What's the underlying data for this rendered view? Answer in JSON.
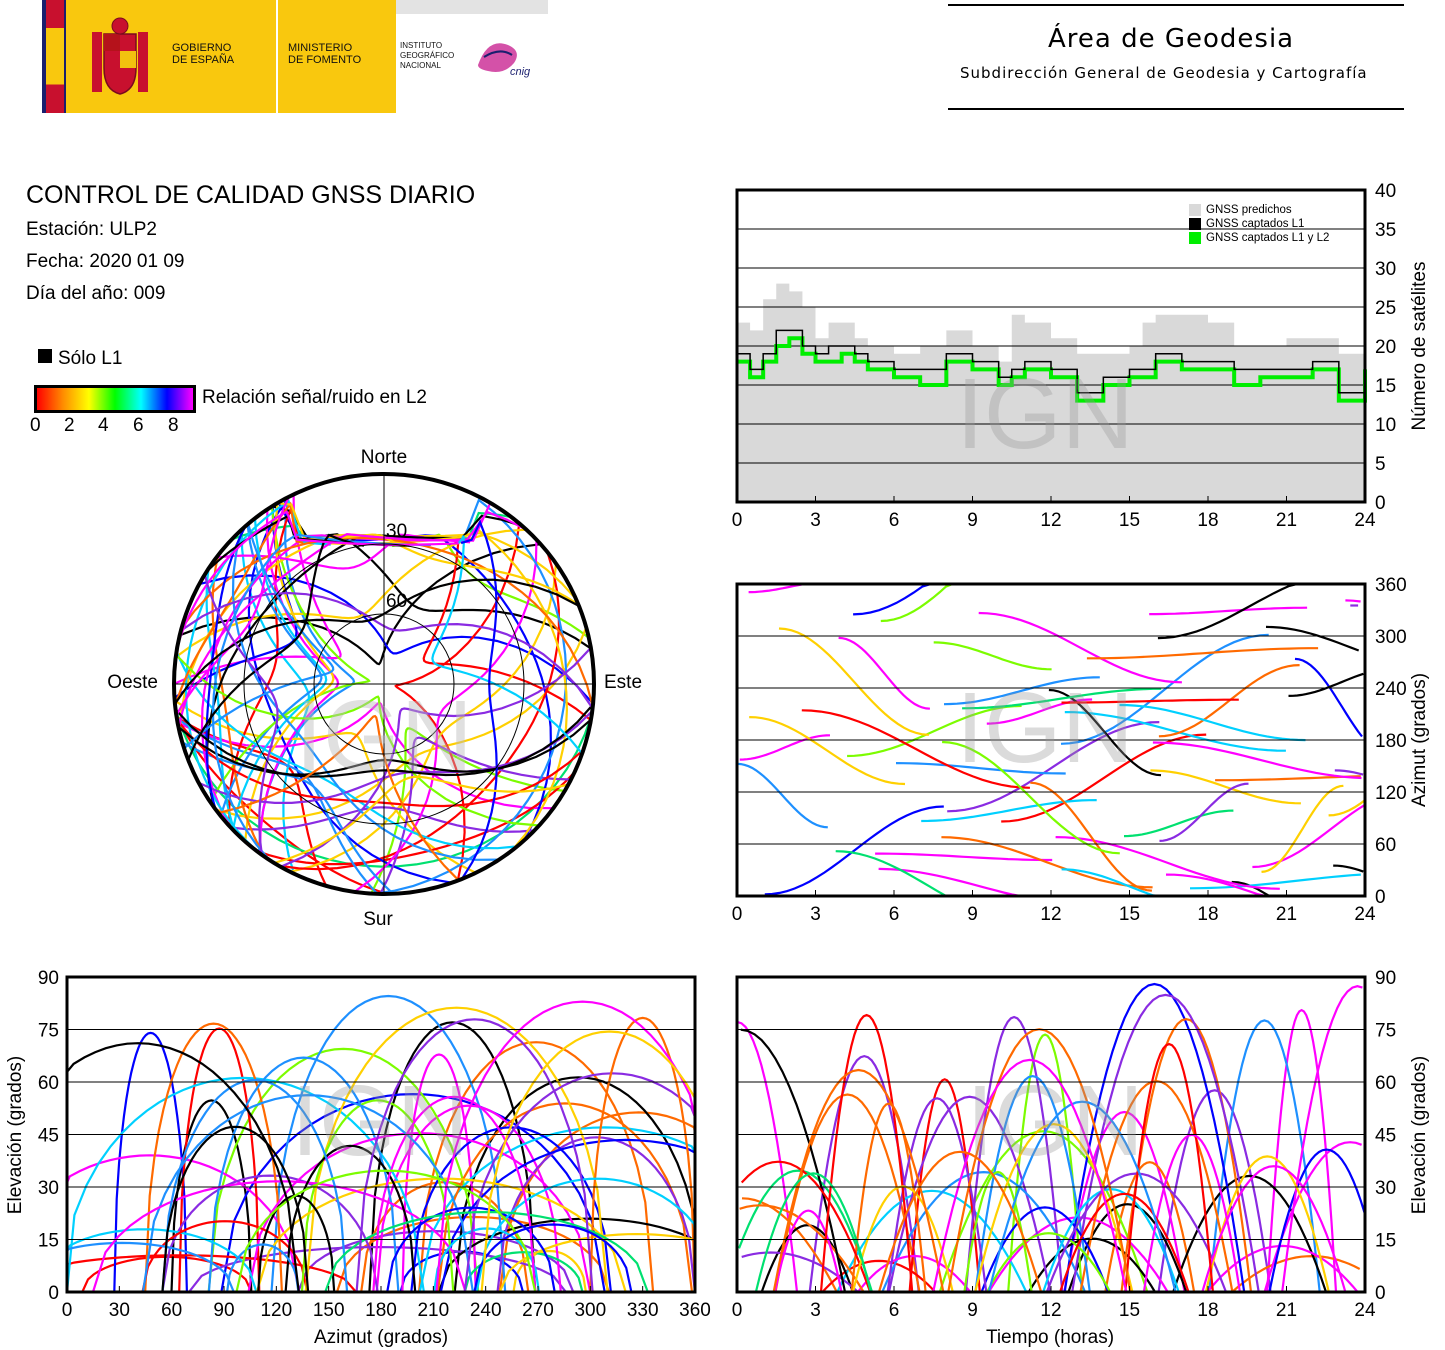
{
  "header": {
    "gobierno": [
      "GOBIERNO",
      "DE ESPAÑA"
    ],
    "ministerio": [
      "MINISTERIO",
      "DE FOMENTO"
    ],
    "instituto": [
      "INSTITUTO",
      "GEOGRÁFICO",
      "NACIONAL"
    ],
    "cnig": "cnig",
    "area_title": "Área de Geodesia",
    "area_subtitle": "Subdirección General de Geodesia y Cartografía",
    "colors": {
      "red": "#c8102e",
      "yellow": "#f9c80e",
      "navy": "#1a1f6e",
      "magenta": "#cc3399"
    }
  },
  "info": {
    "title": "CONTROL DE CALIDAD GNSS DIARIO",
    "station": "Estación: ULP2",
    "date": "Fecha: 2020 01 09",
    "doy": "Día del año: 009"
  },
  "legend": {
    "l1_only": "Sólo L1",
    "snr_label": "Relación señal/ruido en L2",
    "snr_ticks": [
      "0",
      "2",
      "4",
      "6",
      "8"
    ]
  },
  "watermark": "IGN",
  "chart_data": [
    {
      "id": "skyplot",
      "type": "scatter",
      "directions": {
        "north": "Norte",
        "south": "Sur",
        "west": "Oeste",
        "east": "Este"
      },
      "elevation_ring_labels": [
        "30",
        "60"
      ],
      "elevation_rings": [
        0,
        30,
        60
      ],
      "note_values": "polar sky tracks of GNSS satellites colored by L2 SNR"
    },
    {
      "id": "satellites",
      "type": "area",
      "xlabel": "",
      "ylabel": "Número de satélites",
      "xlim": [
        0,
        24
      ],
      "ylim": [
        0,
        40
      ],
      "x_ticks": [
        "0",
        "3",
        "6",
        "9",
        "12",
        "15",
        "18",
        "21",
        "24"
      ],
      "y_ticks": [
        "0",
        "5",
        "10",
        "15",
        "20",
        "25",
        "30",
        "35",
        "40"
      ],
      "legend_position": "top-right",
      "series": [
        {
          "name": "GNSS predichos",
          "color": "#d9d9d9",
          "x": [
            0,
            0.5,
            1,
            1.5,
            2,
            2.5,
            3,
            3.5,
            4,
            4.5,
            5,
            6,
            7,
            8,
            9,
            10,
            10.5,
            11,
            12,
            13,
            14,
            15,
            15.5,
            16,
            17,
            18,
            19,
            20,
            21,
            22,
            23,
            24
          ],
          "values": [
            23,
            22,
            26,
            28,
            27,
            25,
            21,
            23,
            23,
            21,
            20,
            19,
            20,
            22,
            20,
            18,
            24,
            23,
            21,
            19,
            19,
            20,
            23,
            24,
            24,
            23,
            20,
            20,
            21,
            21,
            19,
            20
          ]
        },
        {
          "name": "GNSS captados L1",
          "color": "#000000",
          "x": [
            0,
            0.5,
            1,
            1.5,
            2,
            2.5,
            3,
            3.5,
            4,
            4.5,
            5,
            6,
            7,
            8,
            9,
            10,
            10.5,
            11,
            12,
            13,
            14,
            15,
            15.5,
            16,
            17,
            18,
            19,
            20,
            21,
            22,
            23,
            24
          ],
          "values": [
            19,
            17,
            19,
            22,
            22,
            20,
            19,
            20,
            20,
            19,
            18,
            17,
            17,
            19,
            18,
            16,
            17,
            18,
            17,
            14,
            16,
            17,
            17,
            19,
            18,
            18,
            17,
            17,
            17,
            18,
            14,
            18
          ]
        },
        {
          "name": "GNSS captados L1 y L2",
          "color": "#00ee00",
          "x": [
            0,
            0.5,
            1,
            1.5,
            2,
            2.5,
            3,
            3.5,
            4,
            4.5,
            5,
            6,
            7,
            8,
            9,
            10,
            10.5,
            11,
            12,
            13,
            14,
            15,
            15.5,
            16,
            17,
            18,
            19,
            20,
            21,
            22,
            23,
            24
          ],
          "values": [
            18,
            16,
            18,
            20,
            21,
            19,
            18,
            18,
            19,
            18,
            17,
            16,
            15,
            18,
            17,
            15,
            16,
            17,
            16,
            13,
            15,
            16,
            16,
            18,
            17,
            17,
            15,
            16,
            16,
            17,
            13,
            17
          ]
        }
      ]
    },
    {
      "id": "azimuth_time",
      "type": "scatter",
      "xlabel": "",
      "ylabel": "Azimut (grados)",
      "xlim": [
        0,
        24
      ],
      "ylim": [
        0,
        360
      ],
      "x_ticks": [
        "0",
        "3",
        "6",
        "9",
        "12",
        "15",
        "18",
        "21",
        "24"
      ],
      "y_ticks": [
        "0",
        "60",
        "120",
        "180",
        "240",
        "300",
        "360"
      ]
    },
    {
      "id": "elevation_azimuth",
      "type": "scatter",
      "xlabel": "Azimut (grados)",
      "ylabel": "Elevación (grados)",
      "xlim": [
        0,
        360
      ],
      "ylim": [
        0,
        90
      ],
      "x_ticks": [
        "0",
        "30",
        "60",
        "90",
        "120",
        "150",
        "180",
        "210",
        "240",
        "270",
        "300",
        "330",
        "360"
      ],
      "y_ticks": [
        "0",
        "15",
        "30",
        "45",
        "60",
        "75",
        "90"
      ]
    },
    {
      "id": "elevation_time",
      "type": "scatter",
      "xlabel": "Tiempo (horas)",
      "ylabel": "Elevación (grados)",
      "xlim": [
        0,
        24
      ],
      "ylim": [
        0,
        90
      ],
      "x_ticks": [
        "0",
        "3",
        "6",
        "9",
        "12",
        "15",
        "18",
        "21",
        "24"
      ],
      "y_ticks": [
        "0",
        "15",
        "30",
        "45",
        "60",
        "75",
        "90"
      ]
    }
  ]
}
